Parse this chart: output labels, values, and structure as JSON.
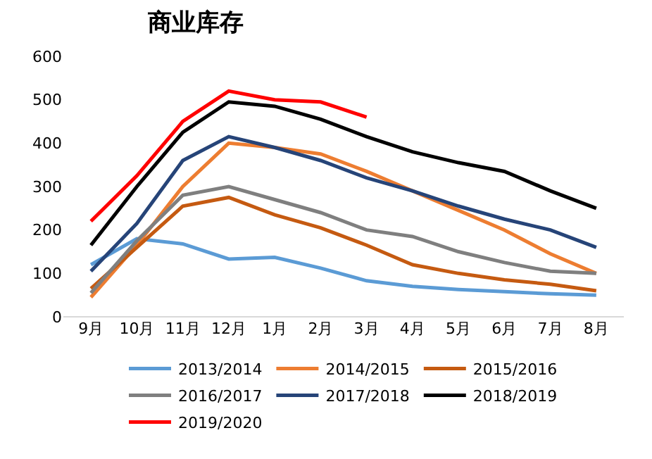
{
  "chart_data": {
    "type": "line",
    "title": "商业库存",
    "categories": [
      "9月",
      "10月",
      "11月",
      "12月",
      "1月",
      "2月",
      "3月",
      "4月",
      "5月",
      "6月",
      "7月",
      "8月"
    ],
    "ylim": [
      0,
      600
    ],
    "yticks": [
      0,
      100,
      200,
      300,
      400,
      500,
      600
    ],
    "grid": false,
    "legend": "bottom",
    "marker": "none",
    "line_style": "solid",
    "series": [
      {
        "name": "2013/2014",
        "color": "#5b9bd5",
        "values": [
          120,
          180,
          168,
          133,
          137,
          112,
          83,
          70,
          63,
          58,
          53,
          50
        ]
      },
      {
        "name": "2014/2015",
        "color": "#ed7d31",
        "values": [
          45,
          165,
          300,
          400,
          390,
          375,
          335,
          290,
          245,
          200,
          145,
          100
        ]
      },
      {
        "name": "2015/2016",
        "color": "#c55a11",
        "values": [
          65,
          160,
          255,
          275,
          235,
          205,
          165,
          120,
          100,
          85,
          75,
          60
        ]
      },
      {
        "name": "2016/2017",
        "color": "#7f7f7f",
        "values": [
          55,
          175,
          280,
          300,
          270,
          240,
          200,
          185,
          150,
          125,
          105,
          100
        ]
      },
      {
        "name": "2017/2018",
        "color": "#264478",
        "values": [
          105,
          215,
          360,
          415,
          390,
          360,
          320,
          290,
          255,
          225,
          200,
          160
        ]
      },
      {
        "name": "2018/2019",
        "color": "#000000",
        "values": [
          165,
          300,
          425,
          495,
          485,
          455,
          415,
          380,
          355,
          335,
          290,
          250
        ]
      },
      {
        "name": "2019/2020",
        "color": "#ff0000",
        "values": [
          220,
          325,
          450,
          520,
          500,
          495,
          460,
          null,
          null,
          null,
          null,
          null
        ]
      }
    ]
  }
}
